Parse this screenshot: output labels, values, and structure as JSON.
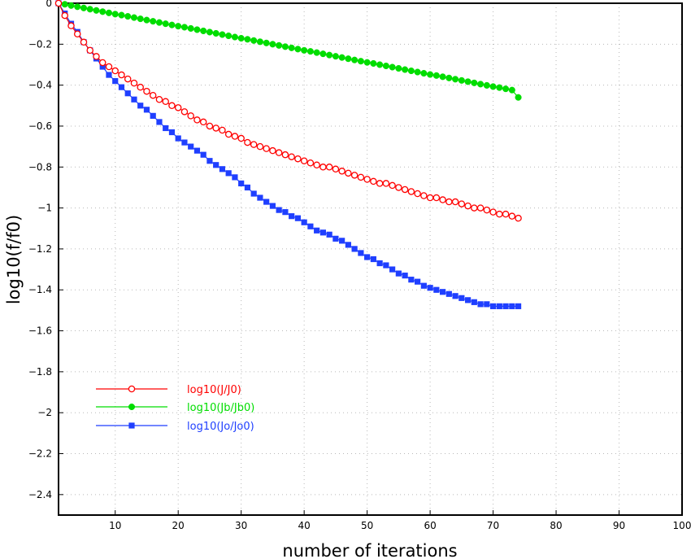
{
  "chart_data": {
    "type": "line",
    "xlabel": "number  of  iterations",
    "ylabel": "log10(f/f0)",
    "xlim": [
      1,
      100
    ],
    "ylim": [
      -2.5,
      0
    ],
    "xticks": [
      10,
      20,
      30,
      40,
      50,
      60,
      70,
      80,
      90,
      100
    ],
    "yticks": [
      0,
      -0.2,
      -0.4,
      -0.6,
      -0.8,
      -1,
      -1.2,
      -1.4,
      -1.6,
      -1.8,
      -2,
      -2.2,
      -2.4
    ],
    "ytick_labels": [
      "0",
      "−0.2",
      "−0.4",
      "−0.6",
      "−0.8",
      "−1",
      "−1.2",
      "−1.4",
      "−1.6",
      "−1.8",
      "−2",
      "−2.2",
      "−2.4"
    ],
    "grid": true,
    "legend_position": "lower-left",
    "x": [
      1,
      2,
      3,
      4,
      5,
      6,
      7,
      8,
      9,
      10,
      11,
      12,
      13,
      14,
      15,
      16,
      17,
      18,
      19,
      20,
      21,
      22,
      23,
      24,
      25,
      26,
      27,
      28,
      29,
      30,
      31,
      32,
      33,
      34,
      35,
      36,
      37,
      38,
      39,
      40,
      41,
      42,
      43,
      44,
      45,
      46,
      47,
      48,
      49,
      50,
      51,
      52,
      53,
      54,
      55,
      56,
      57,
      58,
      59,
      60,
      61,
      62,
      63,
      64,
      65,
      66,
      67,
      68,
      69,
      70,
      71,
      72,
      73,
      74
    ],
    "series": [
      {
        "name": "log10(J/J0)",
        "color": "#ff0000",
        "marker": "open-circle",
        "values": [
          0,
          -0.06,
          -0.11,
          -0.15,
          -0.19,
          -0.23,
          -0.26,
          -0.29,
          -0.31,
          -0.33,
          -0.35,
          -0.37,
          -0.39,
          -0.41,
          -0.43,
          -0.45,
          -0.47,
          -0.48,
          -0.5,
          -0.51,
          -0.53,
          -0.55,
          -0.57,
          -0.58,
          -0.6,
          -0.61,
          -0.62,
          -0.64,
          -0.65,
          -0.66,
          -0.68,
          -0.69,
          -0.7,
          -0.71,
          -0.72,
          -0.73,
          -0.74,
          -0.75,
          -0.76,
          -0.77,
          -0.78,
          -0.79,
          -0.8,
          -0.8,
          -0.81,
          -0.82,
          -0.83,
          -0.84,
          -0.85,
          -0.86,
          -0.87,
          -0.88,
          -0.88,
          -0.89,
          -0.9,
          -0.91,
          -0.92,
          -0.93,
          -0.94,
          -0.95,
          -0.95,
          -0.96,
          -0.97,
          -0.97,
          -0.98,
          -0.99,
          -1,
          -1,
          -1.01,
          -1.02,
          -1.03,
          -1.03,
          -1.04,
          -1.05
        ]
      },
      {
        "name": "log10(Jb/Jb0)",
        "color": "#00dd00",
        "marker": "filled-circle",
        "values": [
          0,
          -0.005,
          -0.011,
          -0.017,
          -0.023,
          -0.029,
          -0.035,
          -0.041,
          -0.047,
          -0.053,
          -0.058,
          -0.064,
          -0.07,
          -0.076,
          -0.082,
          -0.088,
          -0.094,
          -0.1,
          -0.106,
          -0.112,
          -0.117,
          -0.123,
          -0.129,
          -0.135,
          -0.141,
          -0.147,
          -0.153,
          -0.159,
          -0.165,
          -0.171,
          -0.176,
          -0.182,
          -0.188,
          -0.194,
          -0.2,
          -0.206,
          -0.212,
          -0.218,
          -0.224,
          -0.23,
          -0.235,
          -0.241,
          -0.247,
          -0.253,
          -0.259,
          -0.265,
          -0.271,
          -0.277,
          -0.283,
          -0.289,
          -0.294,
          -0.3,
          -0.306,
          -0.312,
          -0.318,
          -0.324,
          -0.33,
          -0.336,
          -0.342,
          -0.348,
          -0.353,
          -0.359,
          -0.365,
          -0.371,
          -0.377,
          -0.383,
          -0.389,
          -0.395,
          -0.401,
          -0.407,
          -0.412,
          -0.418,
          -0.424,
          -0.46
        ]
      },
      {
        "name": "log10(Jo/Jo0)",
        "color": "#1f3fff",
        "marker": "filled-square",
        "values": [
          0,
          -0.05,
          -0.1,
          -0.14,
          -0.19,
          -0.23,
          -0.27,
          -0.31,
          -0.35,
          -0.38,
          -0.41,
          -0.44,
          -0.47,
          -0.5,
          -0.52,
          -0.55,
          -0.58,
          -0.61,
          -0.63,
          -0.66,
          -0.68,
          -0.7,
          -0.72,
          -0.74,
          -0.77,
          -0.79,
          -0.81,
          -0.83,
          -0.85,
          -0.88,
          -0.9,
          -0.93,
          -0.95,
          -0.97,
          -0.99,
          -1.01,
          -1.02,
          -1.04,
          -1.05,
          -1.07,
          -1.09,
          -1.11,
          -1.12,
          -1.13,
          -1.15,
          -1.16,
          -1.18,
          -1.2,
          -1.22,
          -1.24,
          -1.25,
          -1.27,
          -1.28,
          -1.3,
          -1.32,
          -1.33,
          -1.35,
          -1.36,
          -1.38,
          -1.39,
          -1.4,
          -1.41,
          -1.42,
          -1.43,
          -1.44,
          -1.45,
          -1.46,
          -1.47,
          -1.47,
          -1.48,
          -1.48,
          -1.48,
          -1.48,
          -1.48
        ]
      }
    ]
  }
}
